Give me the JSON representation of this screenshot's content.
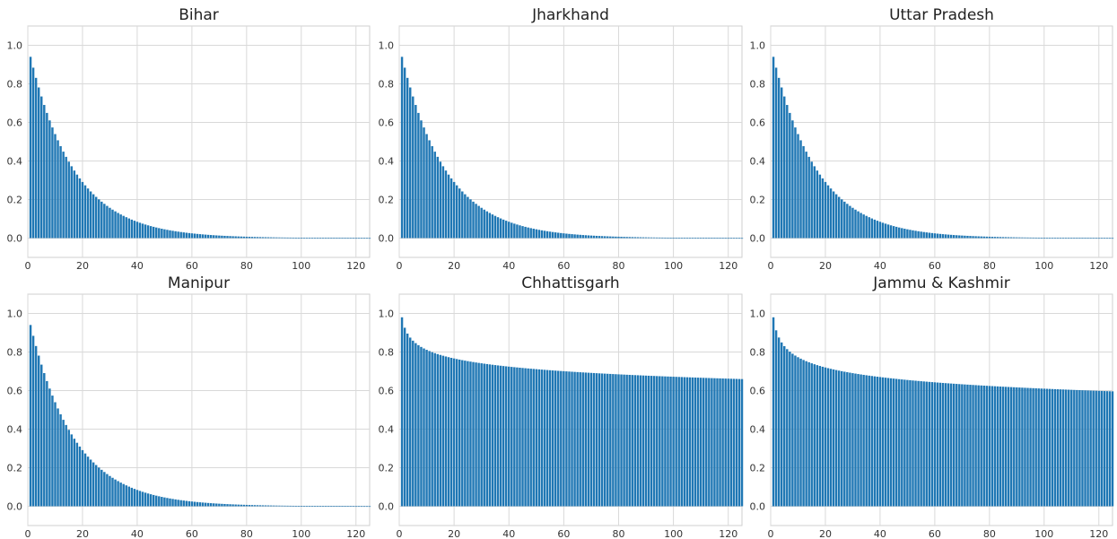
{
  "chart_data": [
    {
      "type": "bar",
      "title": "Bihar",
      "shape": "exp",
      "params": {
        "a": 1.0,
        "k": 0.0617,
        "c": 0.0
      },
      "x_range": [
        1,
        125
      ],
      "xlim": [
        0,
        125
      ],
      "ylim": [
        -0.1,
        1.1
      ],
      "xticks": [
        "0",
        "20",
        "40",
        "60",
        "80",
        "100",
        "120"
      ],
      "yticks": [
        "0.0",
        "0.2",
        "0.4",
        "0.6",
        "0.8",
        "1.0"
      ],
      "grid": true,
      "color": "#1f77b4"
    },
    {
      "type": "bar",
      "title": "Jharkhand",
      "shape": "exp",
      "params": {
        "a": 1.0,
        "k": 0.0617,
        "c": 0.0
      },
      "x_range": [
        1,
        125
      ],
      "xlim": [
        0,
        125
      ],
      "ylim": [
        -0.1,
        1.1
      ],
      "xticks": [
        "0",
        "20",
        "40",
        "60",
        "80",
        "100",
        "120"
      ],
      "yticks": [
        "0.0",
        "0.2",
        "0.4",
        "0.6",
        "0.8",
        "1.0"
      ],
      "grid": true,
      "color": "#1f77b4"
    },
    {
      "type": "bar",
      "title": "Uttar Pradesh",
      "shape": "exp",
      "params": {
        "a": 1.0,
        "k": 0.0617,
        "c": 0.0
      },
      "x_range": [
        1,
        125
      ],
      "xlim": [
        0,
        125
      ],
      "ylim": [
        -0.1,
        1.1
      ],
      "xticks": [
        "0",
        "20",
        "40",
        "60",
        "80",
        "100",
        "120"
      ],
      "yticks": [
        "0.0",
        "0.2",
        "0.4",
        "0.6",
        "0.8",
        "1.0"
      ],
      "grid": true,
      "color": "#1f77b4"
    },
    {
      "type": "bar",
      "title": "Manipur",
      "shape": "exp",
      "params": {
        "a": 1.0,
        "k": 0.0617,
        "c": 0.0
      },
      "x_range": [
        1,
        125
      ],
      "xlim": [
        0,
        125
      ],
      "ylim": [
        -0.1,
        1.1
      ],
      "xticks": [
        "0",
        "20",
        "40",
        "60",
        "80",
        "100",
        "120"
      ],
      "yticks": [
        "0.0",
        "0.2",
        "0.4",
        "0.6",
        "0.8",
        "1.0"
      ],
      "grid": true,
      "color": "#1f77b4"
    },
    {
      "type": "bar",
      "title": "Chhattisgarh",
      "shape": "power",
      "params": {
        "a": 0.98,
        "b": 0.082
      },
      "x_range": [
        1,
        125
      ],
      "xlim": [
        0,
        125
      ],
      "ylim": [
        -0.1,
        1.1
      ],
      "xticks": [
        "0",
        "20",
        "40",
        "60",
        "80",
        "100",
        "120"
      ],
      "yticks": [
        "0.0",
        "0.2",
        "0.4",
        "0.6",
        "0.8",
        "1.0"
      ],
      "grid": true,
      "color": "#1f77b4"
    },
    {
      "type": "bar",
      "title": "Jammu & Kashmir",
      "shape": "power",
      "params": {
        "a": 0.98,
        "b": 0.103
      },
      "x_range": [
        1,
        125
      ],
      "xlim": [
        0,
        125
      ],
      "ylim": [
        -0.1,
        1.1
      ],
      "xticks": [
        "0",
        "20",
        "40",
        "60",
        "80",
        "100",
        "120"
      ],
      "yticks": [
        "0.0",
        "0.2",
        "0.4",
        "0.6",
        "0.8",
        "1.0"
      ],
      "grid": true,
      "color": "#1f77b4"
    }
  ]
}
